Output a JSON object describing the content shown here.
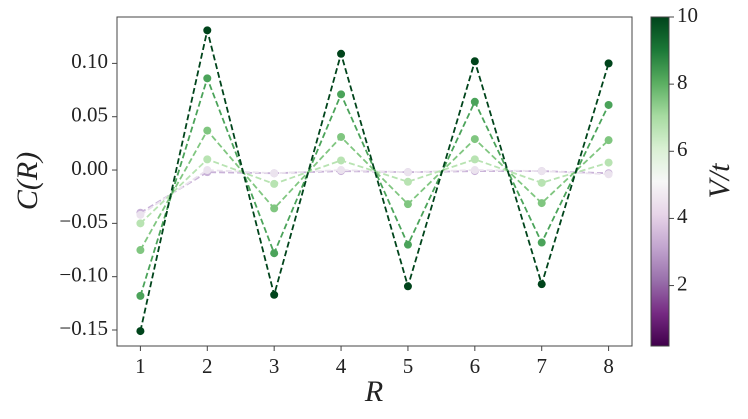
{
  "chart_data": {
    "type": "line",
    "xlabel": "R",
    "ylabel": "C(R)",
    "x": [
      1,
      2,
      3,
      4,
      5,
      6,
      7,
      8
    ],
    "xlim": [
      0.65,
      8.35
    ],
    "xticks": [
      1,
      2,
      3,
      4,
      5,
      6,
      7,
      8
    ],
    "ylim": [
      -0.165,
      0.1435
    ],
    "yticks": [
      {
        "value": -0.15,
        "label": "−0.15"
      },
      {
        "value": -0.1,
        "label": "−0.10"
      },
      {
        "value": -0.05,
        "label": "−0.05"
      },
      {
        "value": 0,
        "label": "0.00"
      },
      {
        "value": 0.05,
        "label": "0.05"
      },
      {
        "value": 0.1,
        "label": "0.10"
      }
    ],
    "line_style": "dashed",
    "series": [
      {
        "color": "#c9b2d8",
        "values": [
          -0.04,
          -0.002,
          -0.003,
          -0.001,
          -0.002,
          -0.001,
          -0.001,
          -0.003
        ]
      },
      {
        "color": "#ebe3ee",
        "values": [
          -0.042,
          0.0,
          -0.003,
          0.0,
          -0.002,
          0.0,
          -0.001,
          -0.004
        ]
      },
      {
        "color": "#b8e3b2",
        "values": [
          -0.05,
          0.01,
          -0.013,
          0.009,
          -0.011,
          0.01,
          -0.012,
          0.007
        ]
      },
      {
        "color": "#80c680",
        "values": [
          -0.075,
          0.037,
          -0.036,
          0.031,
          -0.032,
          0.029,
          -0.031,
          0.028
        ]
      },
      {
        "color": "#4ba35a",
        "values": [
          -0.118,
          0.086,
          -0.078,
          0.071,
          -0.07,
          0.064,
          -0.068,
          0.061
        ]
      },
      {
        "color": "#00441b",
        "values": [
          -0.151,
          0.131,
          -0.117,
          0.109,
          -0.109,
          0.102,
          -0.107,
          0.1
        ]
      }
    ],
    "colorbar": {
      "label": "V/t",
      "lim": [
        0.2,
        10
      ],
      "ticks": [
        2,
        4,
        6,
        8,
        10
      ],
      "colors": [
        "#40004b",
        "#762a83",
        "#9970ab",
        "#c2a5cf",
        "#e7d4e8",
        "#f7f7f7",
        "#d9f0d3",
        "#a6dba0",
        "#5aae61",
        "#1b7837",
        "#00441b"
      ]
    }
  }
}
